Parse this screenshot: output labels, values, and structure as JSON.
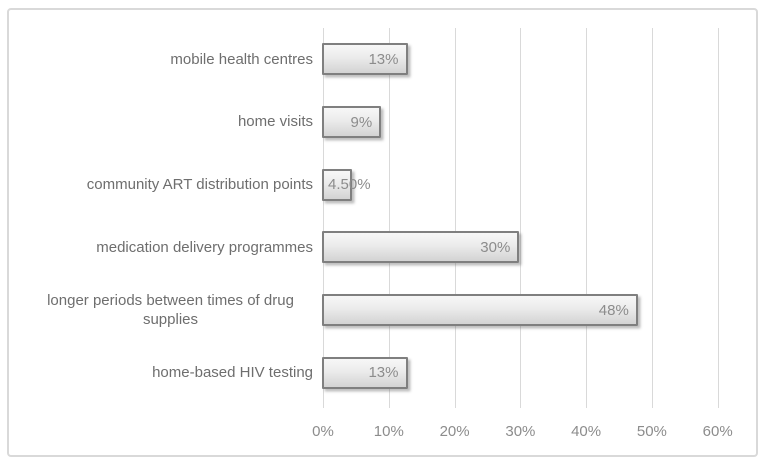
{
  "figure": {
    "background": "#ffffff",
    "border_color": "#d9d9d9"
  },
  "chart_data": {
    "type": "bar",
    "orientation": "horizontal",
    "title": "",
    "xlabel": "",
    "ylabel": "",
    "categories": [
      "mobile health centres",
      "home visits",
      "community ART distribution points",
      "medication delivery programmes",
      "longer periods between times of drug supplies",
      "home-based HIV testing"
    ],
    "values": [
      13,
      9,
      4.5,
      30,
      48,
      13
    ],
    "value_labels": [
      "13%",
      "9%",
      "4.50%",
      "30%",
      "48%",
      "13%"
    ],
    "xlim": [
      0,
      60
    ],
    "x_ticks_percent": [
      0,
      10,
      20,
      30,
      40,
      50,
      60
    ],
    "x_tick_labels": [
      "0%",
      "10%",
      "20%",
      "30%",
      "40%",
      "50%",
      "60%"
    ],
    "grid": true,
    "legend_position": "none",
    "data_label_position": "inside-end",
    "colors": {
      "bar_fill_top": "#f7f7f7",
      "bar_fill_bottom": "#d3d3d3",
      "bar_border": "#7f7f7f",
      "gridline": "#d9d9d9",
      "category_text": "#6e6e6e",
      "value_text": "#8c8c8c",
      "axis_text": "#8c8c8c"
    }
  }
}
